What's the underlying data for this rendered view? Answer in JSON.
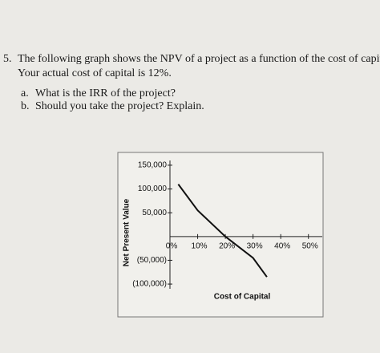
{
  "question": {
    "number": "5.",
    "text": "The following graph shows the NPV of a project as a function of the cost of capital.",
    "text2": "Your actual cost of capital is 12%."
  },
  "items": [
    {
      "label": "a.",
      "text": "What is the IRR of the project?"
    },
    {
      "label": "b.",
      "text": "Should you take the project?  Explain."
    }
  ],
  "chart_data": {
    "type": "line",
    "xlabel": "Cost of Capital",
    "ylabel": "Net Present Value",
    "x": [
      3,
      10,
      20,
      30,
      35
    ],
    "series": [
      {
        "color": "#111111",
        "values": [
          110000,
          55000,
          0,
          -45000,
          -85000
        ]
      }
    ],
    "xlim": [
      0,
      55
    ],
    "ylim": [
      -110000,
      160000
    ],
    "xticks": [
      {
        "value": 0,
        "label": "0%"
      },
      {
        "value": 10,
        "label": "10%"
      },
      {
        "value": 20,
        "label": "20%"
      },
      {
        "value": 30,
        "label": "30%"
      },
      {
        "value": 40,
        "label": "40%"
      },
      {
        "value": 50,
        "label": "50%"
      }
    ],
    "yticks": [
      {
        "value": 150000,
        "label": "150,000"
      },
      {
        "value": 100000,
        "label": "100,000"
      },
      {
        "value": 50000,
        "label": "50,000"
      },
      {
        "value": -50000,
        "label": "(50,000)"
      },
      {
        "value": -100000,
        "label": "(100,000)"
      }
    ]
  }
}
